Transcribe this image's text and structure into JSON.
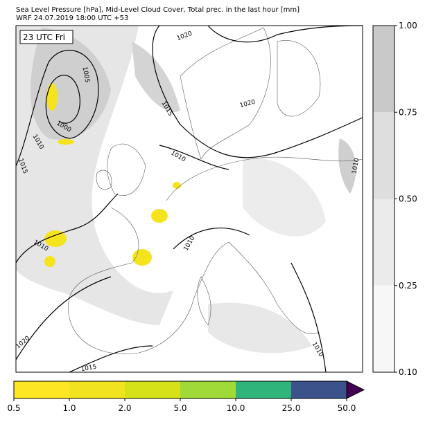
{
  "header": {
    "line1": "Sea Level Pressure [hPa], Mid-Level Cloud Cover, Total prec. in the last hour [mm]",
    "line2": "WRF 24.07.2019 18:00 UTC +53"
  },
  "map": {
    "time_label": "23 UTC Fri",
    "isobar_labels": [
      "1020",
      "1005",
      "1015",
      "1020",
      "1000",
      "1010",
      "1010",
      "1015",
      "1010",
      "1010",
      "1010",
      "1020",
      "1015",
      "1010"
    ]
  },
  "cloud_colorbar": {
    "ticks": [
      "0.10",
      "0.25",
      "0.50",
      "0.75",
      "1.00"
    ],
    "colors": [
      "#f7f7f7",
      "#ebebeb",
      "#dedede",
      "#c9c9c9"
    ]
  },
  "precip_colorbar": {
    "ticks": [
      "0.5",
      "1.0",
      "2.0",
      "5.0",
      "10.0",
      "25.0",
      "50.0"
    ],
    "colors": [
      "#fde725",
      "#f1e31f",
      "#d5e21a",
      "#a0da39",
      "#2fb47c",
      "#3b528b"
    ],
    "extend_color": "#440154"
  }
}
